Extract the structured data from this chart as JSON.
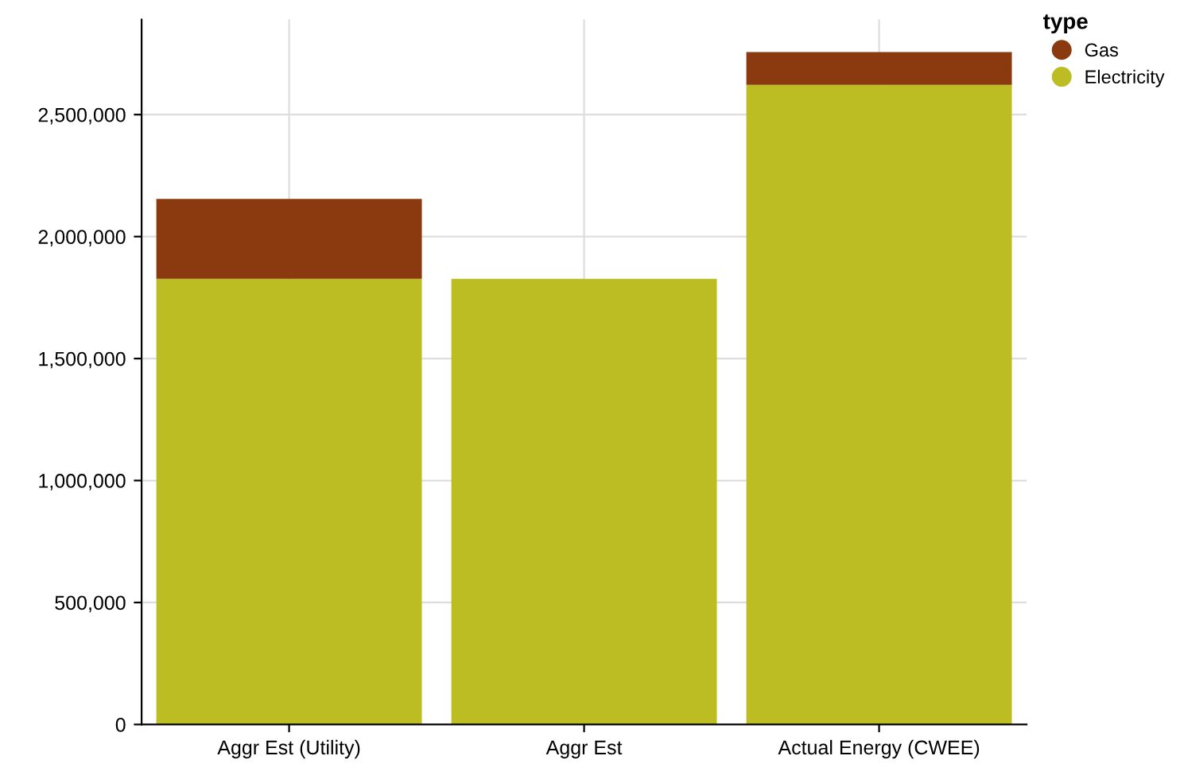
{
  "chart_data": {
    "type": "bar",
    "stacked": true,
    "categories": [
      "Aggr Est (Utility)",
      "Aggr Est",
      "Actual Energy (CWEE)"
    ],
    "series": [
      {
        "name": "Electricity",
        "color": "#bcbd22",
        "values": [
          1827000,
          1827000,
          2622000
        ]
      },
      {
        "name": "Gas",
        "color": "#8b3a0f",
        "values": [
          327000,
          null,
          134000
        ]
      }
    ],
    "ylim": [
      0,
      2890000
    ],
    "yticks": [
      {
        "value": 0,
        "label": "0"
      },
      {
        "value": 500000,
        "label": "500,000"
      },
      {
        "value": 1000000,
        "label": "1,000,000"
      },
      {
        "value": 1500000,
        "label": "1,500,000"
      },
      {
        "value": 2000000,
        "label": "2,000,000"
      },
      {
        "value": 2500000,
        "label": "2,500,000"
      }
    ],
    "grid": true,
    "legend": "top right",
    "legend_title": "type"
  }
}
